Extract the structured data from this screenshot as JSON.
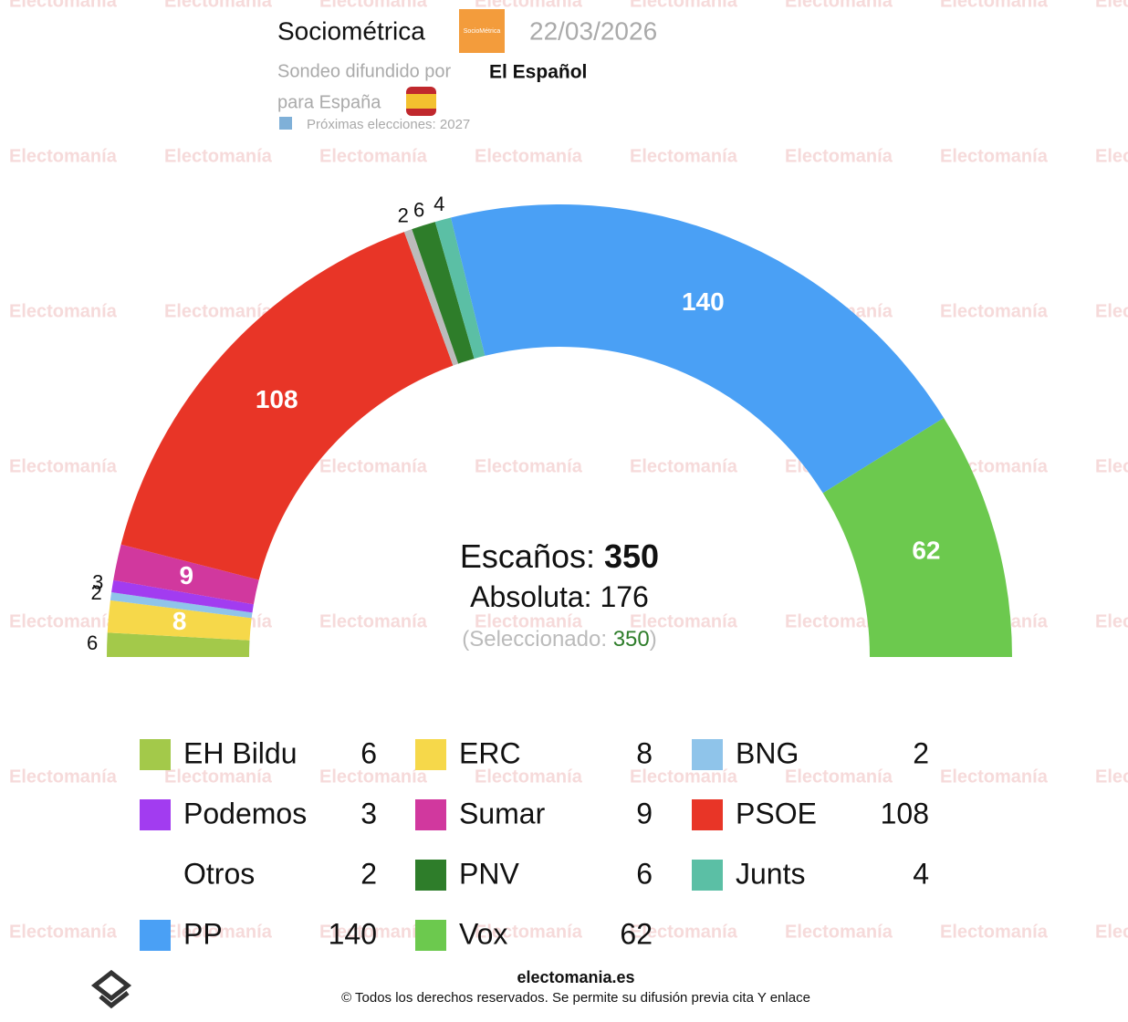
{
  "chart_data": {
    "type": "parliament",
    "watermark": "Electomanía",
    "pollster": "Sociométrica",
    "pollster_logo": "SocioMétrica",
    "date": "22/03/2026",
    "published_by": "Sondeo difundido por",
    "publisher": "El Español",
    "scope": "para España",
    "next_elections": "Próximas elecciones: 2027",
    "categories": [
      "EH Bildu",
      "ERC",
      "BNG",
      "Podemos",
      "Sumar",
      "PSOE",
      "Otros",
      "PNV",
      "Junts",
      "PP",
      "Vox"
    ],
    "values": [
      6,
      8,
      2,
      3,
      9,
      108,
      2,
      6,
      4,
      140,
      62
    ],
    "colors": [
      "#a3c94a",
      "#f6d84a",
      "#8fc4ea",
      "#a23cf0",
      "#d1389e",
      "#e83527",
      "#bbbbbb",
      "#2e7d2a",
      "#5bbfa5",
      "#4aa0f5",
      "#6cc94e"
    ],
    "seats_label": "Escaños:",
    "total": 350,
    "majority_label": "Absoluta:",
    "majority": 176,
    "selected_prefix": "(Seleccionado:",
    "selected": 350,
    "selected_suffix": ")",
    "site": "electomania.es",
    "copyright": "© Todos los derechos reservados. Se permite su difusión previa cita Y enlace"
  }
}
